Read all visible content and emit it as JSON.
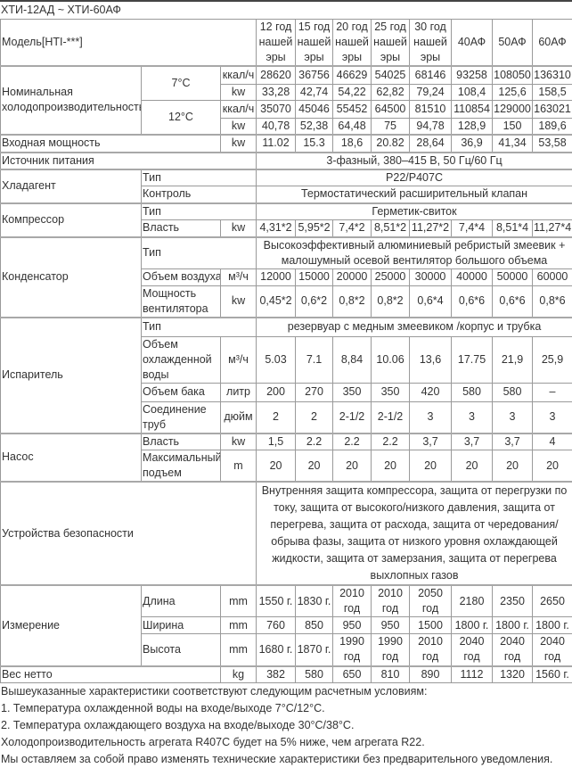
{
  "title": "ХТИ-12АД ~ ХТИ-60АФ",
  "header": {
    "model_label": "Модель[HTI-***]",
    "models": [
      "12 год нашей эры",
      "15 год нашей эры",
      "20 год нашей эры",
      "25 год нашей эры",
      "30 год нашей эры",
      "40АФ",
      "50АФ",
      "60АФ"
    ]
  },
  "cooling": {
    "label": "Номинальная холодопроизводительность",
    "t7": {
      "label": "7°C",
      "kcal_unit": "ккал/ч",
      "kcal": [
        "28620",
        "36756",
        "46629",
        "54025",
        "68146",
        "93258",
        "108050",
        "136310"
      ],
      "kw_unit": "kw",
      "kw": [
        "33,28",
        "42,74",
        "54,22",
        "62,82",
        "79,24",
        "108,4",
        "125,6",
        "158,5"
      ]
    },
    "t12": {
      "label": "12°C",
      "kcal_unit": "ккал/ч",
      "kcal": [
        "35070",
        "45046",
        "55452",
        "64500",
        "81510",
        "110854",
        "129000",
        "163021"
      ],
      "kw_unit": "kw",
      "kw": [
        "40,78",
        "52,38",
        "64,48",
        "75",
        "94,78",
        "128,9",
        "150",
        "189,6"
      ]
    }
  },
  "input_power": {
    "label": "Входная мощность",
    "unit": "kw",
    "values": [
      "11.02",
      "15.3",
      "18,6",
      "20.82",
      "28,64",
      "36,9",
      "41,34",
      "53,58"
    ]
  },
  "power_source": {
    "label": "Источник питания",
    "value": "3-фазный, 380–415 В, 50 Гц/60 Гц"
  },
  "refrigerant": {
    "label": "Хладагент",
    "type_label": "Тип",
    "type": "P22/P407C",
    "control_label": "Контроль",
    "control": "Термостатический расширительный клапан"
  },
  "compressor": {
    "label": "Компрессор",
    "type_label": "Тип",
    "type": "Герметик-свиток",
    "power_label": "Власть",
    "unit": "kw",
    "values": [
      "4,31*2",
      "5,95*2",
      "7,4*2",
      "8,51*2",
      "11,27*2",
      "7,4*4",
      "8,51*4",
      "11,27*4"
    ]
  },
  "condenser": {
    "label": "Конденсатор",
    "type_label": "Тип",
    "type": "Высокоэффективный алюминиевый ребристый змеевик + малошумный осевой вентилятор большого объема",
    "air_label": "Объем воздуха",
    "air_unit": "м³/ч",
    "air": [
      "12000",
      "15000",
      "20000",
      "25000",
      "30000",
      "40000",
      "50000",
      "60000"
    ],
    "fan_label": "Мощность вентилятора",
    "fan_unit": "kw",
    "fan": [
      "0,45*2",
      "0,6*2",
      "0,8*2",
      "0,8*2",
      "0,6*4",
      "0,6*6",
      "0,6*6",
      "0,8*6"
    ]
  },
  "evaporator": {
    "label": "Испаритель",
    "type_label": "Тип",
    "type": "резервуар с медным змеевиком /корпус и трубка",
    "water_label": "Объем охлажденной воды",
    "water_unit": "м³/ч",
    "water": [
      "5.03",
      "7.1",
      "8,84",
      "10.06",
      "13,6",
      "17.75",
      "21,9",
      "25,9"
    ],
    "tank_label": "Объем бака",
    "tank_unit": "литр",
    "tank": [
      "200",
      "270",
      "350",
      "350",
      "420",
      "580",
      "580",
      "–"
    ],
    "pipe_label": "Соединение труб",
    "pipe_unit": "дюйм",
    "pipe": [
      "2",
      "2",
      "2-1/2",
      "2-1/2",
      "3",
      "3",
      "3",
      "3"
    ]
  },
  "pump": {
    "label": "Насос",
    "power_label": "Власть",
    "power_unit": "kw",
    "power": [
      "1,5",
      "2.2",
      "2.2",
      "2.2",
      "3,7",
      "3,7",
      "3,7",
      "4"
    ],
    "head_label": "Максимальный подъем",
    "head_unit": "m",
    "head": [
      "20",
      "20",
      "20",
      "20",
      "20",
      "20",
      "20",
      "20"
    ]
  },
  "safety": {
    "label": "Устройства безопасности",
    "value": "Внутренняя защита компрессора, защита от перегрузки по току, защита от высокого/низкого давления, защита от перегрева, защита от расхода, защита от чередования/обрыва фазы, защита от низкого уровня охлаждающей жидкости, защита от замерзания, защита от перегрева выхлопных газов"
  },
  "dimensions": {
    "label": "Измерение",
    "length_label": "Длина",
    "length_unit": "mm",
    "length": [
      "1550 г.",
      "1830 г.",
      "2010 год",
      "2010 год",
      "2050 год",
      "2180",
      "2350",
      "2650"
    ],
    "width_label": "Ширина",
    "width_unit": "mm",
    "width": [
      "760",
      "850",
      "950",
      "950",
      "1500",
      "1800 г.",
      "1800 г.",
      "1800 г."
    ],
    "height_label": "Высота",
    "height_unit": "mm",
    "height": [
      "1680 г.",
      "1870 г.",
      "1990 год",
      "1990 год",
      "2010 год",
      "2040 год",
      "2040 год",
      "2040 год"
    ]
  },
  "net_weight": {
    "label": "Вес нетто",
    "unit": "kg",
    "values": [
      "382",
      "580",
      "650",
      "810",
      "890",
      "1112",
      "1320",
      "1560 г."
    ]
  },
  "notes": [
    "Вышеуказанные характеристики соответствуют следующим расчетным условиям:",
    "1. Температура охлажденной воды на входе/выходе 7°C/12°C.",
    "2. Температура охлаждающего воздуха на входе/выходе 30°C/38°C.",
    "Холодопроизводительность агрегата R407C будет на 5% ниже, чем агрегата R22.",
    "Мы оставляем за собой право изменять технические характеристики без предварительного уведомления."
  ]
}
